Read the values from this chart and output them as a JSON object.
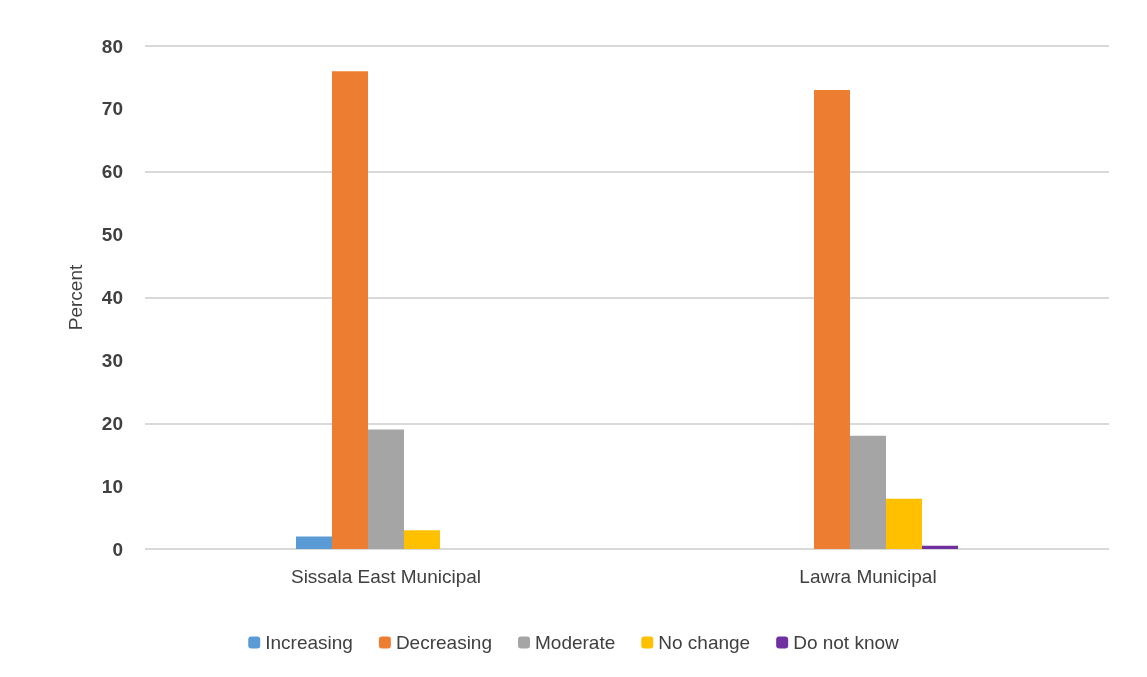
{
  "chart_data": {
    "type": "bar",
    "ylabel": "Percent",
    "categories": [
      "Sissala East Municipal",
      "Lawra Municipal"
    ],
    "series": [
      {
        "name": "Increasing",
        "color": "#5b9bd5",
        "values": [
          2,
          null
        ]
      },
      {
        "name": "Decreasing",
        "color": "#ed7d31",
        "values": [
          76,
          73
        ]
      },
      {
        "name": "Moderate",
        "color": "#a5a5a5",
        "values": [
          19,
          18
        ]
      },
      {
        "name": "No change",
        "color": "#ffc000",
        "values": [
          3,
          8
        ]
      },
      {
        "name": "Do not know",
        "color": "#7030a0",
        "values": [
          null,
          0.5
        ]
      }
    ],
    "ylim": [
      0,
      80
    ],
    "yticks": [
      0,
      10,
      20,
      30,
      40,
      50,
      60,
      70,
      80
    ],
    "grid": "y",
    "legend": "bottom"
  }
}
